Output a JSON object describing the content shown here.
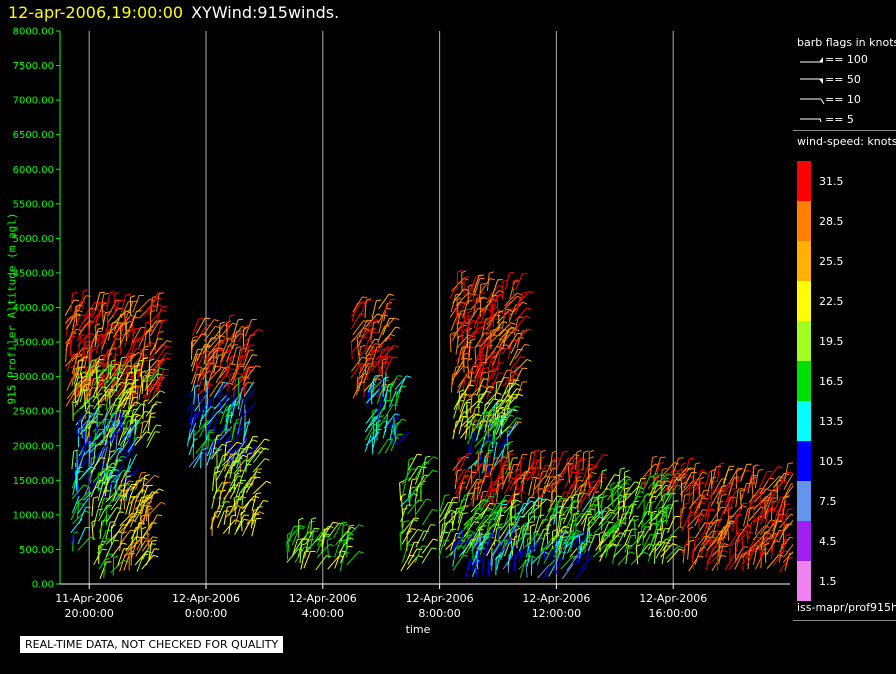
{
  "header": {
    "timestamp": "12-apr-2006,19:00:00",
    "product": "XYWind:915winds."
  },
  "chart_data": {
    "type": "wind-barb time-height",
    "title": "12-apr-2006,19:00:00  XYWind:915winds.",
    "xlabel": "time",
    "ylabel": "915 Profiler Altitude (m agl)",
    "ylim": [
      0,
      8000
    ],
    "yticks": [
      "0.00",
      "500.00",
      "1000.00",
      "1500.00",
      "2000.00",
      "2500.00",
      "3000.00",
      "3500.00",
      "4000.00",
      "4500.00",
      "5000.00",
      "5500.00",
      "6000.00",
      "6500.00",
      "7000.00",
      "7500.00",
      "8000.00"
    ],
    "xticks": [
      {
        "date": "11-Apr-2006",
        "time": "20:00:00",
        "hour": 20
      },
      {
        "date": "12-Apr-2006",
        "time": "0:00:00",
        "hour": 24
      },
      {
        "date": "12-Apr-2006",
        "time": "4:00:00",
        "hour": 28
      },
      {
        "date": "12-Apr-2006",
        "time": "8:00:00",
        "hour": 32
      },
      {
        "date": "12-Apr-2006",
        "time": "12:00:00",
        "hour": 36
      },
      {
        "date": "12-Apr-2006",
        "time": "16:00:00",
        "hour": 40
      }
    ],
    "xlim_hours": [
      19,
      44
    ],
    "grid": "vertical lines at x ticks",
    "clusters": [
      {
        "t0": 19.2,
        "t1": 22.5,
        "h0": 2600,
        "h1": 4000,
        "s": 30
      },
      {
        "t0": 19.5,
        "t1": 22.0,
        "h0": 2000,
        "h1": 3000,
        "s": 21
      },
      {
        "t0": 19.6,
        "t1": 21.3,
        "h0": 1200,
        "h1": 2300,
        "s": 11
      },
      {
        "t0": 20.1,
        "t1": 21.0,
        "h0": 100,
        "h1": 1800,
        "s": 19
      },
      {
        "t0": 21.0,
        "t1": 22.0,
        "h0": 200,
        "h1": 1400,
        "s": 24
      },
      {
        "t0": 19.4,
        "t1": 19.8,
        "h0": 500,
        "h1": 1700,
        "s": 15
      },
      {
        "t0": 23.5,
        "t1": 25.3,
        "h0": 2700,
        "h1": 3600,
        "s": 30
      },
      {
        "t0": 23.4,
        "t1": 25.5,
        "h0": 1700,
        "h1": 2700,
        "s": 12
      },
      {
        "t0": 24.2,
        "t1": 25.6,
        "h0": 700,
        "h1": 1900,
        "s": 22
      },
      {
        "t0": 26.8,
        "t1": 28.8,
        "h0": 200,
        "h1": 700,
        "s": 19
      },
      {
        "t0": 29.0,
        "t1": 30.3,
        "h0": 2700,
        "h1": 4000,
        "s": 30
      },
      {
        "t0": 29.5,
        "t1": 30.5,
        "h0": 1900,
        "h1": 2800,
        "s": 14
      },
      {
        "t0": 30.7,
        "t1": 31.6,
        "h0": 200,
        "h1": 1700,
        "s": 18
      },
      {
        "t0": 32.4,
        "t1": 34.8,
        "h0": 2700,
        "h1": 4300,
        "s": 30
      },
      {
        "t0": 32.5,
        "t1": 34.5,
        "h0": 2100,
        "h1": 2800,
        "s": 22
      },
      {
        "t0": 33.0,
        "t1": 34.5,
        "h0": 1600,
        "h1": 2400,
        "s": 14
      },
      {
        "t0": 32.5,
        "t1": 37.5,
        "h0": 1100,
        "h1": 1700,
        "s": 30
      },
      {
        "t0": 32.0,
        "t1": 37.5,
        "h0": 400,
        "h1": 1100,
        "s": 18
      },
      {
        "t0": 32.5,
        "t1": 37.0,
        "h0": 100,
        "h1": 600,
        "s": 12
      },
      {
        "t0": 37.5,
        "t1": 40.0,
        "h0": 300,
        "h1": 1400,
        "s": 19
      },
      {
        "t0": 39.0,
        "t1": 40.6,
        "h0": 1300,
        "h1": 1600,
        "s": 30
      },
      {
        "t0": 40.3,
        "t1": 43.8,
        "h0": 200,
        "h1": 1500,
        "s": 30
      }
    ]
  },
  "legend": {
    "barb_title": "barb flags in knots",
    "barbs": [
      {
        "label": "== 100",
        "kind": "pennant"
      },
      {
        "label": "== 50",
        "kind": "pennant"
      },
      {
        "label": "== 10",
        "kind": "full"
      },
      {
        "label": "== 5",
        "kind": "half"
      }
    ],
    "speed_title": "wind-speed: knots",
    "colorbar": [
      {
        "label": "31.5",
        "color": "#ff0000"
      },
      {
        "label": "28.5",
        "color": "#ff8000"
      },
      {
        "label": "25.5",
        "color": "#ffb000"
      },
      {
        "label": "22.5",
        "color": "#ffff00"
      },
      {
        "label": "19.5",
        "color": "#a0ff20"
      },
      {
        "label": "16.5",
        "color": "#00e000"
      },
      {
        "label": "13.5",
        "color": "#00ffff"
      },
      {
        "label": "10.5",
        "color": "#0000ff"
      },
      {
        "label": "7.5",
        "color": "#6495ed"
      },
      {
        "label": "4.5",
        "color": "#a020f0"
      },
      {
        "label": "1.5",
        "color": "#ee82ee"
      }
    ],
    "source": "iss-mapr/prof915h"
  },
  "footer": {
    "quality_note": "REAL-TIME DATA, NOT CHECKED FOR QUALITY"
  }
}
